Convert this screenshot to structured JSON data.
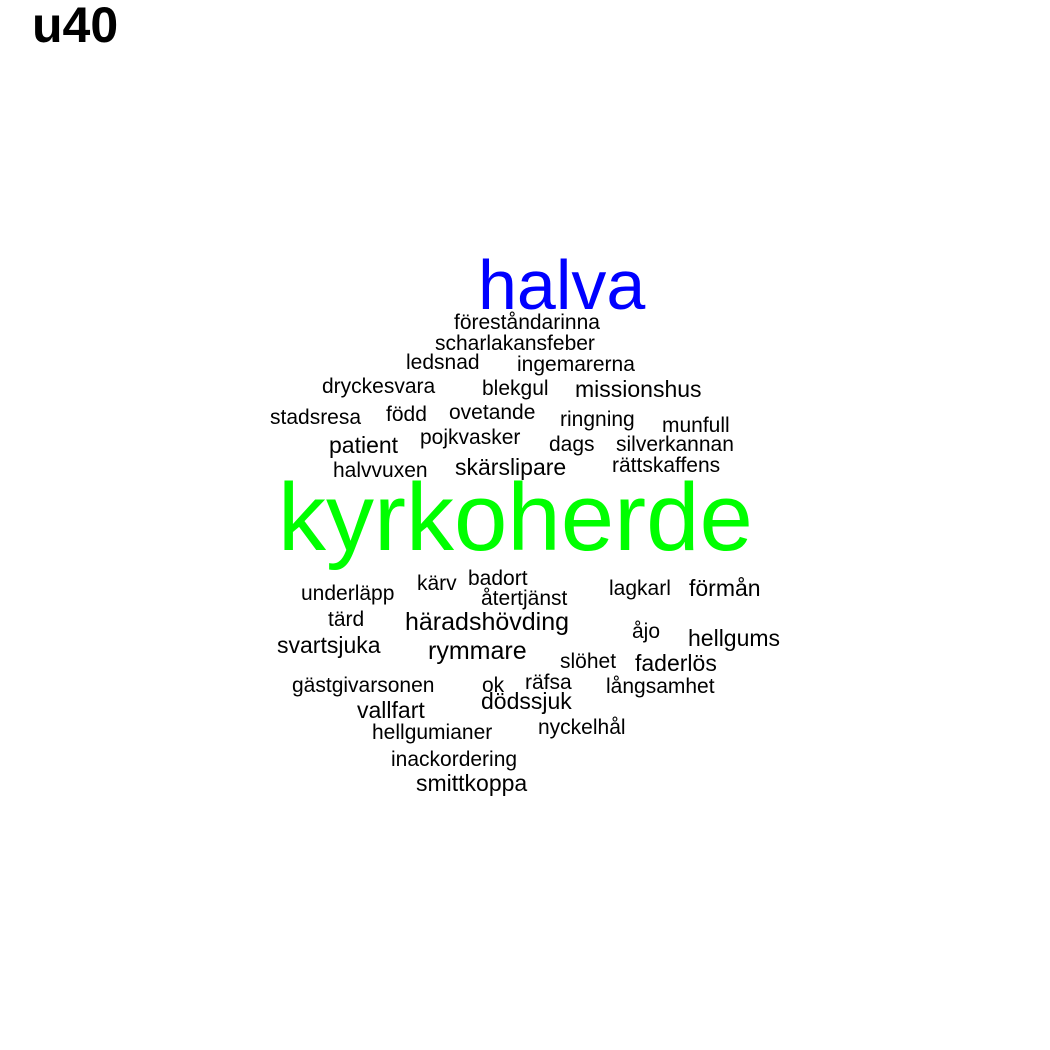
{
  "title": "u40",
  "colors": {
    "background": "#ffffff",
    "default_word": "#000000",
    "halva": "#0000ff",
    "kyrkoherde": "#00ff00"
  },
  "words": {
    "halva": "halva",
    "forestandarinna": "föreståndarinna",
    "scharlakansfeber": "scharlakansfeber",
    "ledsnad": "ledsnad",
    "ingemarerna": "ingemarerna",
    "dryckesvara": "dryckesvara",
    "blekgul": "blekgul",
    "missionshus": "missionshus",
    "stadsresa": "stadsresa",
    "fodd": "född",
    "ovetande": "ovetande",
    "ringning": "ringning",
    "munfull": "munfull",
    "patient": "patient",
    "pojkvasker": "pojkvasker",
    "dags": "dags",
    "silverkannan": "silverkannan",
    "halvvuxen": "halvvuxen",
    "skarslipare": "skärslipare",
    "rattskaffens": "rättskaffens",
    "kyrkoherde": "kyrkoherde",
    "underlapp": "underläpp",
    "karv": "kärv",
    "badort": "badort",
    "atertjanst": "återtjänst",
    "lagkarl": "lagkarl",
    "forman": "förmån",
    "tard": "tärd",
    "haradshovding": "häradshövding",
    "ajo": "åjo",
    "hellgums": "hellgums",
    "svartsjuka": "svartsjuka",
    "rymmare": "rymmare",
    "slohet": "slöhet",
    "faderlos": "faderlös",
    "gastgivarsonen": "gästgivarsonen",
    "ok": "ok",
    "rafsa": "räfsa",
    "langsamhet": "långsamhet",
    "dodssjuk": "dödssjuk",
    "vallfart": "vallfart",
    "hellgumianer": "hellgumianer",
    "nyckelhal": "nyckelhål",
    "inackordering": "inackordering",
    "smittkoppa": "smittkoppa"
  }
}
